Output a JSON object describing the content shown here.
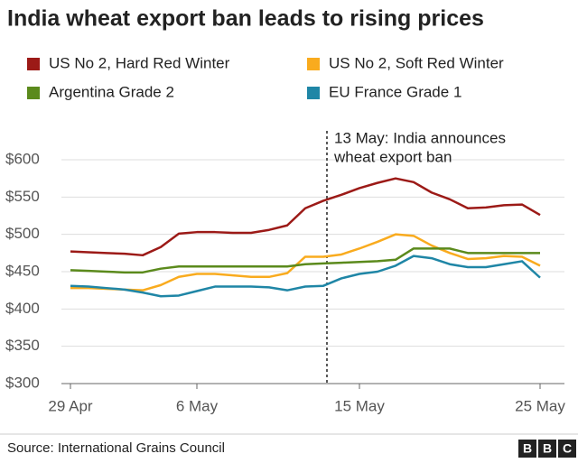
{
  "chart_data": {
    "type": "line",
    "title": "India wheat export ban leads to rising prices",
    "categories": [
      "29 Apr",
      null,
      null,
      null,
      null,
      null,
      null,
      "6 May",
      null,
      null,
      null,
      null,
      null,
      null,
      null,
      null,
      "15 May",
      null,
      null,
      null,
      null,
      null,
      null,
      null,
      null,
      null,
      "25 May"
    ],
    "series": [
      {
        "name": "US No 2, Hard Red Winter",
        "color": "#9c1a17",
        "values": [
          477,
          476,
          475,
          474,
          472,
          483,
          501,
          503,
          503,
          502,
          502,
          506,
          512,
          535,
          545,
          553,
          562,
          569,
          575,
          570,
          556,
          547,
          535,
          536,
          539,
          540,
          526
        ]
      },
      {
        "name": "US No 2, Soft Red Winter",
        "color": "#f9ab1e",
        "values": [
          428,
          428,
          427,
          426,
          425,
          432,
          443,
          447,
          447,
          445,
          443,
          443,
          448,
          470,
          470,
          473,
          481,
          490,
          500,
          498,
          485,
          475,
          467,
          468,
          471,
          470,
          458
        ]
      },
      {
        "name": "Argentina Grade 2",
        "color": "#5b8a1c",
        "values": [
          452,
          451,
          450,
          449,
          449,
          454,
          457,
          457,
          457,
          457,
          457,
          457,
          457,
          460,
          461,
          462,
          463,
          464,
          466,
          481,
          481,
          481,
          475,
          475,
          475,
          475,
          475
        ]
      },
      {
        "name": "EU France Grade 1",
        "color": "#1f86a6",
        "values": [
          431,
          430,
          428,
          426,
          422,
          417,
          418,
          424,
          430,
          430,
          430,
          429,
          425,
          430,
          431,
          441,
          447,
          450,
          458,
          471,
          468,
          460,
          456,
          456,
          460,
          464,
          442
        ]
      }
    ],
    "ylim": [
      300,
      600
    ],
    "yticks": [
      {
        "value": 300,
        "label": "$300"
      },
      {
        "value": 350,
        "label": "$350"
      },
      {
        "value": 400,
        "label": "$400"
      },
      {
        "value": 450,
        "label": "$450"
      },
      {
        "value": 500,
        "label": "$500"
      },
      {
        "value": 550,
        "label": "$550"
      },
      {
        "value": 600,
        "label": "$600"
      }
    ],
    "grid": true,
    "annotation": [
      "13  May: India announces",
      "wheat export ban"
    ],
    "source": "Source: International Grains Council",
    "logo": [
      "B",
      "B",
      "C"
    ]
  }
}
